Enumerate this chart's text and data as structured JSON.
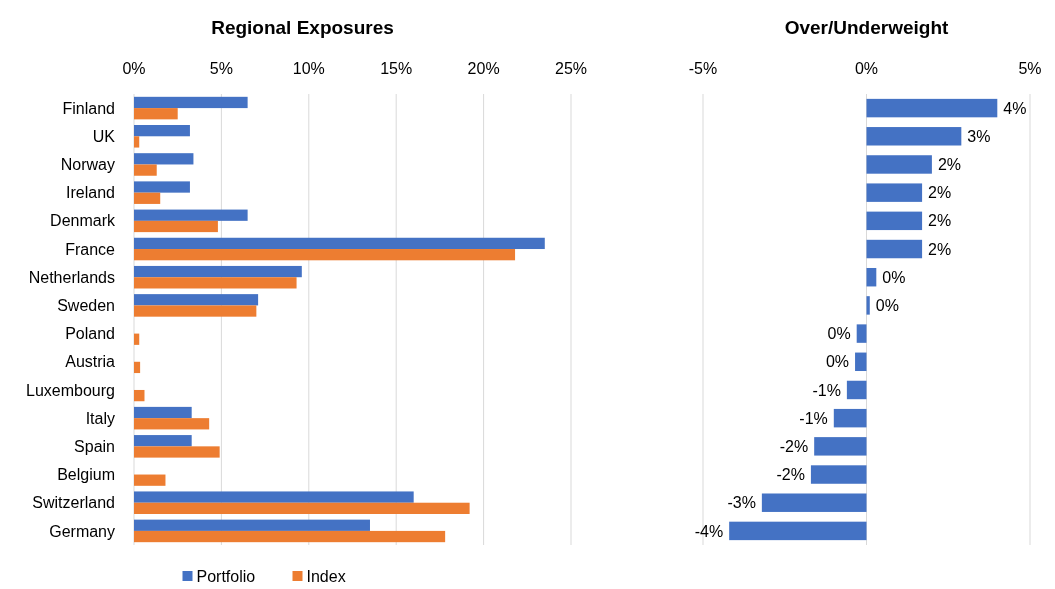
{
  "chart_data": [
    {
      "type": "bar",
      "orientation": "horizontal",
      "title": "Regional Exposures",
      "categories": [
        "Finland",
        "UK",
        "Norway",
        "Ireland",
        "Denmark",
        "France",
        "Netherlands",
        "Sweden",
        "Poland",
        "Austria",
        "Luxembourg",
        "Italy",
        "Spain",
        "Belgium",
        "Switzerland",
        "Germany"
      ],
      "series": [
        {
          "name": "Portfolio",
          "color": "#4472c4",
          "values": [
            6.5,
            3.2,
            3.4,
            3.2,
            6.5,
            23.5,
            9.6,
            7.1,
            0,
            0,
            0,
            3.3,
            3.3,
            0,
            16.0,
            13.5
          ]
        },
        {
          "name": "Index",
          "color": "#ed7d31",
          "values": [
            2.5,
            0.3,
            1.3,
            1.5,
            4.8,
            21.8,
            9.3,
            7.0,
            0.3,
            0.35,
            0.6,
            4.3,
            4.9,
            1.8,
            19.2,
            17.8
          ]
        }
      ],
      "xlim": [
        0,
        25
      ],
      "xticks": [
        {
          "value": 0,
          "label": "0%"
        },
        {
          "value": 5,
          "label": "5%"
        },
        {
          "value": 10,
          "label": "10%"
        },
        {
          "value": 15,
          "label": "15%"
        },
        {
          "value": 20,
          "label": "20%"
        },
        {
          "value": 25,
          "label": "25%"
        }
      ],
      "grid": "x",
      "legend": "bottom"
    },
    {
      "type": "bar",
      "orientation": "horizontal",
      "title": "Over/Underweight",
      "categories": [
        null,
        null,
        null,
        null,
        null,
        null,
        null,
        null,
        null,
        null,
        null,
        null,
        null,
        null,
        null,
        null
      ],
      "series": [
        {
          "color": "#4472c4",
          "values": [
            4.0,
            2.9,
            2.0,
            1.7,
            1.7,
            1.7,
            0.3,
            0.1,
            -0.3,
            -0.35,
            -0.6,
            -1.0,
            -1.6,
            -1.7,
            -3.2,
            -4.2
          ],
          "value_labels": [
            "4%",
            "3%",
            "2%",
            "2%",
            "2%",
            "2%",
            "0%",
            "0%",
            "0%",
            "0%",
            "-1%",
            "-1%",
            "-2%",
            "-2%",
            "-3%",
            "-4%"
          ]
        }
      ],
      "xlim": [
        -5,
        5
      ],
      "xticks": [
        {
          "value": -5,
          "label": "-5%"
        },
        {
          "value": 0,
          "label": "0%"
        },
        {
          "value": 5,
          "label": "5%"
        }
      ],
      "grid": "x"
    }
  ]
}
